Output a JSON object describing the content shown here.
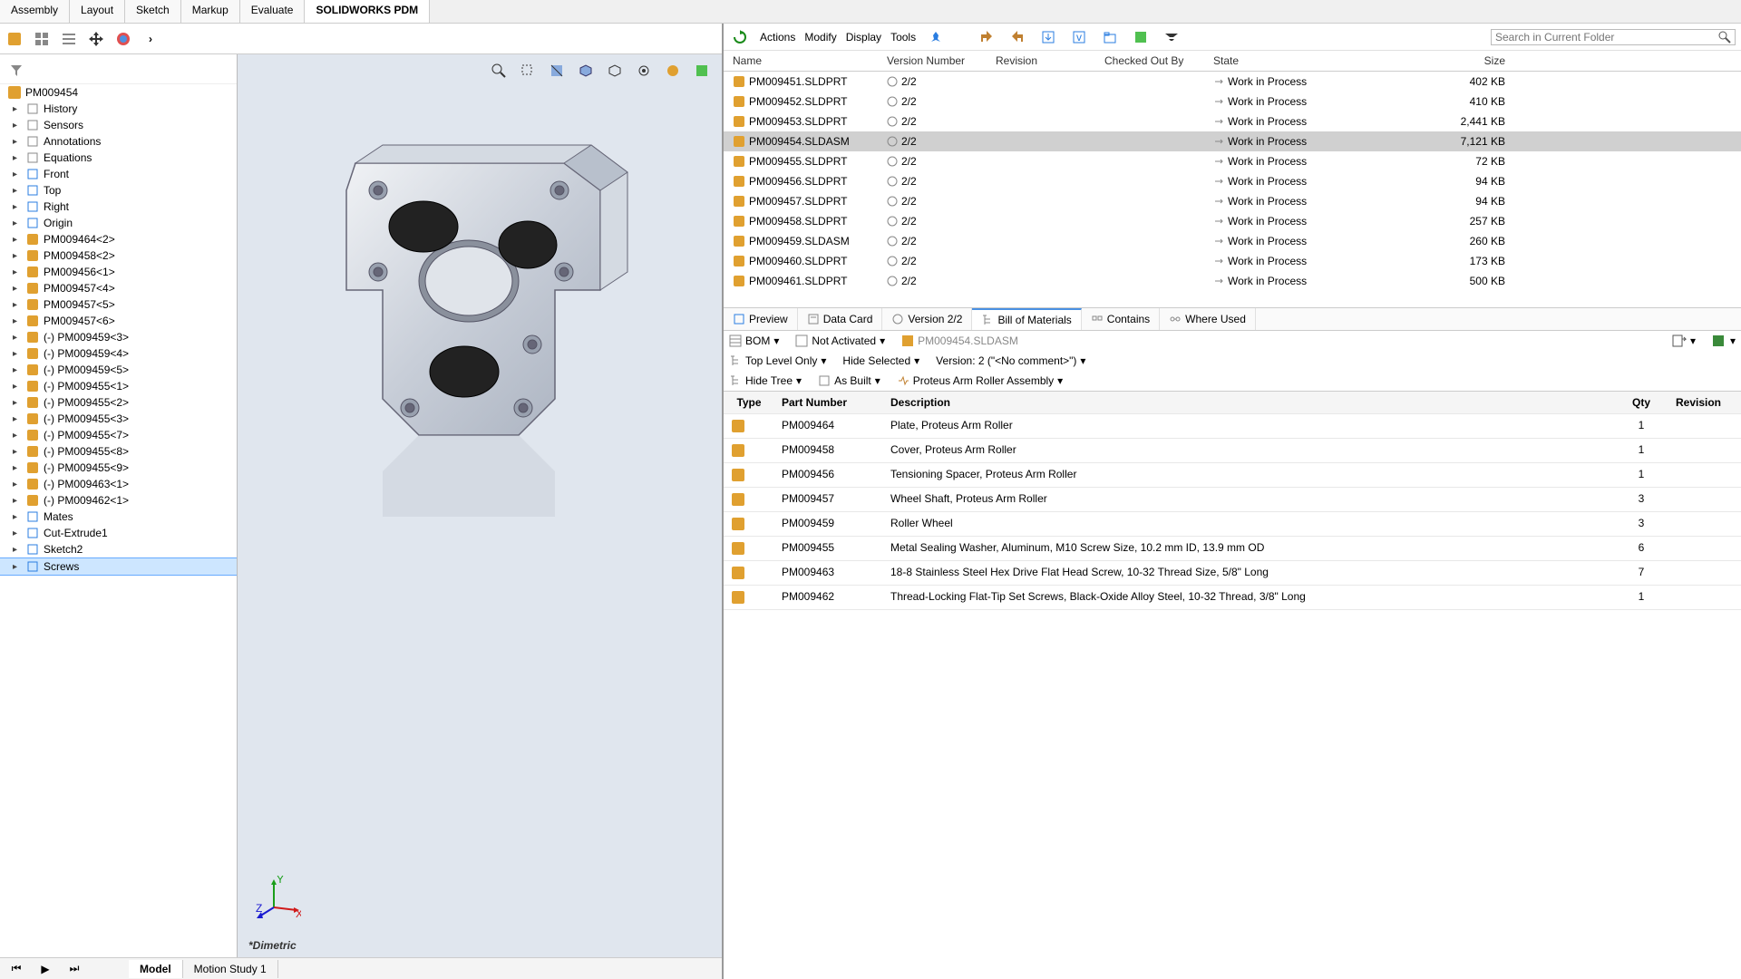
{
  "topTabs": [
    "Assembly",
    "Layout",
    "Sketch",
    "Markup",
    "Evaluate",
    "SOLIDWORKS PDM"
  ],
  "activeTopTab": 5,
  "bottomTabs": [
    "Model",
    "Motion Study 1"
  ],
  "activeBottomTab": 0,
  "viewLabel": "*Dimetric",
  "treeRoot": "PM009454",
  "treeFixed": [
    "History",
    "Sensors",
    "Annotations",
    "Equations",
    "Front",
    "Top",
    "Right",
    "Origin"
  ],
  "treeParts": [
    "PM009464<2>",
    "PM009458<2>",
    "PM009456<1>",
    "PM009457<4>",
    "PM009457<5>",
    "PM009457<6>",
    "(-) PM009459<3>",
    "(-) PM009459<4>",
    "(-) PM009459<5>",
    "(-) PM009455<1>",
    "(-) PM009455<2>",
    "(-) PM009455<3>",
    "(-) PM009455<7>",
    "(-) PM009455<8>",
    "(-) PM009455<9>",
    "(-) PM009463<1>",
    "(-) PM009462<1>"
  ],
  "treeTail": [
    "Mates",
    "Cut-Extrude1",
    "Sketch2",
    "Screws"
  ],
  "pdmMenus": [
    "Actions",
    "Modify",
    "Display",
    "Tools"
  ],
  "searchPlaceholder": "Search in Current Folder",
  "fileCols": {
    "name": "Name",
    "ver": "Version Number",
    "rev": "Revision",
    "co": "Checked Out By",
    "state": "State",
    "size": "Size"
  },
  "fileRows": [
    {
      "name": "PM009451.SLDPRT",
      "ver": "2/2",
      "state": "Work in Process",
      "size": "402 KB"
    },
    {
      "name": "PM009452.SLDPRT",
      "ver": "2/2",
      "state": "Work in Process",
      "size": "410 KB"
    },
    {
      "name": "PM009453.SLDPRT",
      "ver": "2/2",
      "state": "Work in Process",
      "size": "2,441 KB"
    },
    {
      "name": "PM009454.SLDASM",
      "ver": "2/2",
      "state": "Work in Process",
      "size": "7,121 KB",
      "sel": true
    },
    {
      "name": "PM009455.SLDPRT",
      "ver": "2/2",
      "state": "Work in Process",
      "size": "72 KB"
    },
    {
      "name": "PM009456.SLDPRT",
      "ver": "2/2",
      "state": "Work in Process",
      "size": "94 KB"
    },
    {
      "name": "PM009457.SLDPRT",
      "ver": "2/2",
      "state": "Work in Process",
      "size": "94 KB"
    },
    {
      "name": "PM009458.SLDPRT",
      "ver": "2/2",
      "state": "Work in Process",
      "size": "257 KB"
    },
    {
      "name": "PM009459.SLDASM",
      "ver": "2/2",
      "state": "Work in Process",
      "size": "260 KB"
    },
    {
      "name": "PM009460.SLDPRT",
      "ver": "2/2",
      "state": "Work in Process",
      "size": "173 KB"
    },
    {
      "name": "PM009461.SLDPRT",
      "ver": "2/2",
      "state": "Work in Process",
      "size": "500 KB"
    }
  ],
  "infoTabs": [
    "Preview",
    "Data Card",
    "Version 2/2",
    "Bill of Materials",
    "Contains",
    "Where Used"
  ],
  "activeInfoTab": 3,
  "bomDropdowns": {
    "bom": "BOM",
    "activated": "Not Activated",
    "asmName": "PM009454.SLDASM",
    "level": "Top Level Only",
    "hide": "Hide Selected",
    "version": "Version: 2 (\"<No comment>\")",
    "tree": "Hide Tree",
    "built": "As Built",
    "config": "Proteus Arm Roller Assembly"
  },
  "bomCols": {
    "type": "Type",
    "pn": "Part Number",
    "desc": "Description",
    "qty": "Qty",
    "rev": "Revision"
  },
  "bomRows": [
    {
      "pn": "PM009464",
      "desc": "Plate, Proteus Arm Roller",
      "qty": "1"
    },
    {
      "pn": "PM009458",
      "desc": "Cover, Proteus Arm Roller",
      "qty": "1"
    },
    {
      "pn": "PM009456",
      "desc": "Tensioning Spacer, Proteus Arm Roller",
      "qty": "1"
    },
    {
      "pn": "PM009457",
      "desc": "Wheel Shaft, Proteus Arm Roller",
      "qty": "3"
    },
    {
      "pn": "PM009459",
      "desc": "Roller Wheel",
      "qty": "3"
    },
    {
      "pn": "PM009455",
      "desc": "Metal Sealing Washer, Aluminum, M10 Screw Size, 10.2 mm ID, 13.9 mm OD",
      "qty": "6"
    },
    {
      "pn": "PM009463",
      "desc": "18-8 Stainless Steel Hex Drive Flat Head Screw, 10-32 Thread Size, 5/8\" Long",
      "qty": "7"
    },
    {
      "pn": "PM009462",
      "desc": "Thread-Locking Flat-Tip Set Screws, Black-Oxide Alloy Steel, 10-32 Thread, 3/8\" Long",
      "qty": "1"
    }
  ]
}
